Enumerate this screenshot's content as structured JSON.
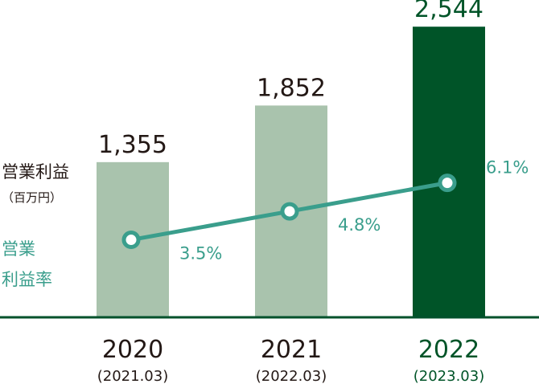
{
  "labels": {
    "profit": "営業利益",
    "profit_unit": "（百万円）",
    "margin_line1": "営業",
    "margin_line2": "利益率"
  },
  "colors": {
    "bar_past": "#a9c3ad",
    "bar_current": "#005428",
    "line": "#3a9e8c",
    "baseline": "#00512b",
    "text": "#231815"
  },
  "chart_data": {
    "type": "bar",
    "categories": [
      "2020",
      "2021",
      "2022"
    ],
    "sub_categories": [
      "(2021.03)",
      "(2022.03)",
      "(2023.03)"
    ],
    "series": [
      {
        "name": "営業利益",
        "values": [
          1355,
          1852,
          2544
        ],
        "value_labels": [
          "1,355",
          "1,852",
          "2,544"
        ]
      },
      {
        "name": "営業利益率",
        "type": "line",
        "values": [
          3.5,
          4.8,
          6.1
        ],
        "value_labels": [
          "3.5%",
          "4.8%",
          "6.1%"
        ]
      }
    ],
    "highlight_index": 2,
    "ylim": [
      0,
      2750
    ],
    "margin_ylim": [
      0,
      11
    ],
    "grid": false
  }
}
